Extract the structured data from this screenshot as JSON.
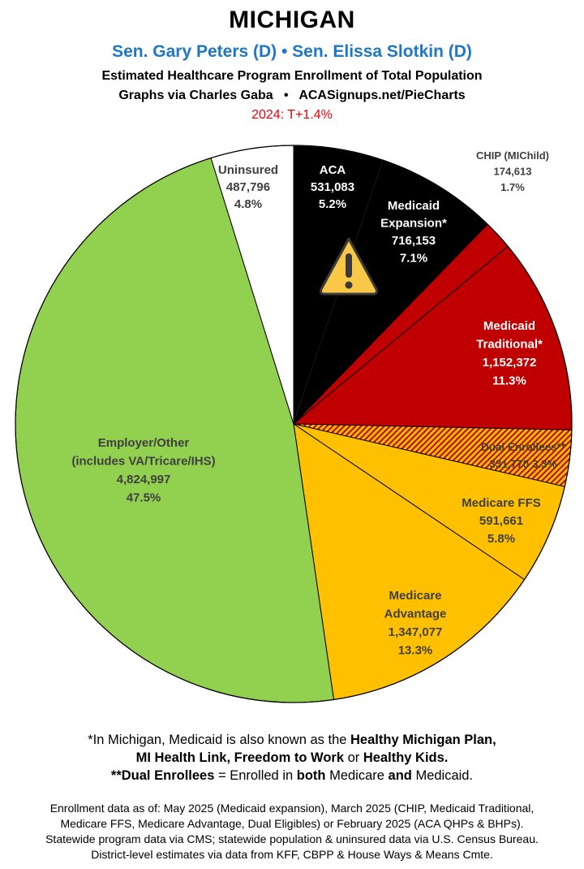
{
  "header": {
    "title": "MICHIGAN",
    "senators": "Sen. Gary Peters (D) • Sen. Elissa Slotkin (D)",
    "subtitle": "Estimated Healthcare Program Enrollment of Total Population",
    "credit": "Graphs via Charles Gaba   •   ACASignups.net/PieCharts",
    "margin": "2024: T+1.4%"
  },
  "chart_data": {
    "type": "pie",
    "start": "12 o'clock, clockwise",
    "slices": [
      {
        "label": [
          "ACA"
        ],
        "value": 531083,
        "value_text": "531,083",
        "percent": 5.2,
        "percent_text": "5.2%",
        "color": "#000000",
        "text_color": "#ffffff"
      },
      {
        "label": [
          "Medicaid",
          "Expansion*"
        ],
        "value": 716153,
        "value_text": "716,153",
        "percent": 7.1,
        "percent_text": "7.1%",
        "color": "#000000",
        "text_color": "#ffffff"
      },
      {
        "label": [
          "CHIP (MIChild)"
        ],
        "value": 174613,
        "value_text": "174,613",
        "percent": 1.7,
        "percent_text": "1.7%",
        "color": "#c00000",
        "text_color": "#404040"
      },
      {
        "label": [
          "Medicaid",
          "Traditional*"
        ],
        "value": 1152372,
        "value_text": "1,152,372",
        "percent": 11.3,
        "percent_text": "11.3%",
        "color": "#c00000",
        "text_color": "#ffffff"
      },
      {
        "label": [
          "Dual Enrollees**"
        ],
        "value": 331770,
        "value_text": "331,770",
        "percent": 3.3,
        "percent_text": "3.3%",
        "color": "#ffc000",
        "hatch": "#c00000",
        "text_color": "#404040"
      },
      {
        "label": [
          "Medicare FFS"
        ],
        "value": 591661,
        "value_text": "591,661",
        "percent": 5.8,
        "percent_text": "5.8%",
        "color": "#ffc000",
        "text_color": "#404040"
      },
      {
        "label": [
          "Medicare",
          "Advantage"
        ],
        "value": 1347077,
        "value_text": "1,347,077",
        "percent": 13.3,
        "percent_text": "13.3%",
        "color": "#ffc000",
        "text_color": "#404040"
      },
      {
        "label": [
          "Employer/Other",
          "(includes VA/Tricare/IHS)"
        ],
        "value": 4824997,
        "value_text": "4,824,997",
        "percent": 47.5,
        "percent_text": "47.5%",
        "color": "#92d050",
        "text_color": "#404040"
      },
      {
        "label": [
          "Uninsured"
        ],
        "value": 487796,
        "value_text": "487,796",
        "percent": 4.8,
        "percent_text": "4.8%",
        "color": "#ffffff",
        "text_color": "#404040"
      }
    ],
    "annotation_icon": "warning-icon",
    "legend": "none"
  },
  "footer": {
    "note1_a": "*In Michigan, Medicaid is also known as the ",
    "note1_b": "Healthy Michigan Plan,",
    "note2_a": "MI Health Link, Freedom to Work",
    "note2_b": " or ",
    "note2_c": "Healthy Kids.",
    "note3_a": "**Dual Enrollees",
    "note3_b": " = Enrolled in ",
    "note3_c": "both",
    "note3_d": " Medicare ",
    "note3_e": "and",
    "note3_f": " Medicaid.",
    "sources": [
      "Enrollment data as of: May 2025 (Medicaid expansion), March 2025 (CHIP, Medicaid Traditional,",
      "Medicare FFS, Medicare Advantage, Dual Eligibles) or February 2025 (ACA QHPs & BHPs).",
      "Statewide program data via CMS; statewide population & uninsured data via U.S. Census Bureau.",
      "District-level estimates via data from KFF, CBPP & House Ways & Means Cmte."
    ]
  }
}
